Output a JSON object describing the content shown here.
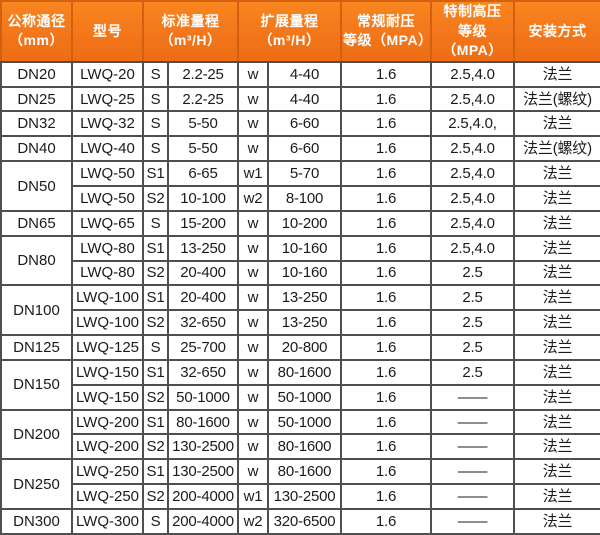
{
  "colors": {
    "header_orange": "#f3761b",
    "header_orange_light": "#f8861f",
    "header_cell_border": "#d2600e",
    "grid_line": "#4f4f51",
    "header_text": "#ffffff",
    "body_text": "#1b1b1b",
    "row_background": "#ffffff"
  },
  "table": {
    "headers": [
      {
        "id": "nominal-diameter",
        "label": "公称通径\n（mm）"
      },
      {
        "id": "model",
        "label": "型号"
      },
      {
        "id": "standard-range",
        "label": "标准量程\n（m³/H）"
      },
      {
        "id": "extended-range",
        "label": "扩展量程\n（m³/H）"
      },
      {
        "id": "standard-pressure",
        "label": "常规耐压\n等级（MPA）"
      },
      {
        "id": "high-pressure",
        "label": "特制高压\n等级（MPA）"
      },
      {
        "id": "installation",
        "label": "安装方式"
      }
    ],
    "rows": [
      {
        "dn": "DN20",
        "dn_rowspan": 1,
        "model": "LWQ-20",
        "std_code": "S",
        "std_range": "2.2-25",
        "ext_code": "w",
        "ext_range": "4-40",
        "pressure": "1.6",
        "high_pressure": "2.5,4.0",
        "installation": "法兰"
      },
      {
        "dn": "DN25",
        "dn_rowspan": 1,
        "model": "LWQ-25",
        "std_code": "S",
        "std_range": "2.2-25",
        "ext_code": "w",
        "ext_range": "4-40",
        "pressure": "1.6",
        "high_pressure": "2.5,4.0",
        "installation": "法兰(螺纹)"
      },
      {
        "dn": "DN32",
        "dn_rowspan": 1,
        "model": "LWQ-32",
        "std_code": "S",
        "std_range": "5-50",
        "ext_code": "w",
        "ext_range": "6-60",
        "pressure": "1.6",
        "high_pressure": "2.5,4.0,",
        "installation": "法兰"
      },
      {
        "dn": "DN40",
        "dn_rowspan": 1,
        "model": "LWQ-40",
        "std_code": "S",
        "std_range": "5-50",
        "ext_code": "w",
        "ext_range": "6-60",
        "pressure": "1.6",
        "high_pressure": "2.5,4.0",
        "installation": "法兰(螺纹)"
      },
      {
        "dn": "DN50",
        "dn_rowspan": 2,
        "model": "LWQ-50",
        "std_code": "S1",
        "std_range": "6-65",
        "ext_code": "w1",
        "ext_range": "5-70",
        "pressure": "1.6",
        "high_pressure": "2.5,4.0",
        "installation": "法兰"
      },
      {
        "dn": null,
        "model": "LWQ-50",
        "std_code": "S2",
        "std_range": "10-100",
        "ext_code": "w2",
        "ext_range": "8-100",
        "pressure": "1.6",
        "high_pressure": "2.5,4.0",
        "installation": "法兰"
      },
      {
        "dn": "DN65",
        "dn_rowspan": 1,
        "model": "LWQ-65",
        "std_code": "S",
        "std_range": "15-200",
        "ext_code": "w",
        "ext_range": "10-200",
        "pressure": "1.6",
        "high_pressure": "2.5,4.0",
        "installation": "法兰"
      },
      {
        "dn": "DN80",
        "dn_rowspan": 2,
        "model": "LWQ-80",
        "std_code": "S1",
        "std_range": "13-250",
        "ext_code": "w",
        "ext_range": "10-160",
        "pressure": "1.6",
        "high_pressure": "2.5,4.0",
        "installation": "法兰"
      },
      {
        "dn": null,
        "model": "LWQ-80",
        "std_code": "S2",
        "std_range": "20-400",
        "ext_code": "w",
        "ext_range": "10-160",
        "pressure": "1.6",
        "high_pressure": "2.5",
        "installation": "法兰"
      },
      {
        "dn": "DN100",
        "dn_rowspan": 2,
        "model": "LWQ-100",
        "std_code": "S1",
        "std_range": "20-400",
        "ext_code": "w",
        "ext_range": "13-250",
        "pressure": "1.6",
        "high_pressure": "2.5",
        "installation": "法兰"
      },
      {
        "dn": null,
        "model": "LWQ-100",
        "std_code": "S2",
        "std_range": "32-650",
        "ext_code": "w",
        "ext_range": "13-250",
        "pressure": "1.6",
        "high_pressure": "2.5",
        "installation": "法兰"
      },
      {
        "dn": "DN125",
        "dn_rowspan": 1,
        "model": "LWQ-125",
        "std_code": "S",
        "std_range": "25-700",
        "ext_code": "w",
        "ext_range": "20-800",
        "pressure": "1.6",
        "high_pressure": "2.5",
        "installation": "法兰"
      },
      {
        "dn": "DN150",
        "dn_rowspan": 2,
        "model": "LWQ-150",
        "std_code": "S1",
        "std_range": "32-650",
        "ext_code": "w",
        "ext_range": "80-1600",
        "pressure": "1.6",
        "high_pressure": "2.5",
        "installation": "法兰"
      },
      {
        "dn": null,
        "model": "LWQ-150",
        "std_code": "S2",
        "std_range": "50-1000",
        "ext_code": "w",
        "ext_range": "50-1000",
        "pressure": "1.6",
        "high_pressure": "——",
        "installation": "法兰"
      },
      {
        "dn": "DN200",
        "dn_rowspan": 2,
        "model": "LWQ-200",
        "std_code": "S1",
        "std_range": "80-1600",
        "ext_code": "w",
        "ext_range": "50-1000",
        "pressure": "1.6",
        "high_pressure": "——",
        "installation": "法兰"
      },
      {
        "dn": null,
        "model": "LWQ-200",
        "std_code": "S2",
        "std_range": "130-2500",
        "ext_code": "w",
        "ext_range": "80-1600",
        "pressure": "1.6",
        "high_pressure": "——",
        "installation": "法兰"
      },
      {
        "dn": "DN250",
        "dn_rowspan": 2,
        "model": "LWQ-250",
        "std_code": "S1",
        "std_range": "130-2500",
        "ext_code": "w",
        "ext_range": "80-1600",
        "pressure": "1.6",
        "high_pressure": "——",
        "installation": "法兰"
      },
      {
        "dn": null,
        "model": "LWQ-250",
        "std_code": "S2",
        "std_range": "200-4000",
        "ext_code": "w1",
        "ext_range": "130-2500",
        "pressure": "1.6",
        "high_pressure": "——",
        "installation": "法兰"
      },
      {
        "dn": "DN300",
        "dn_rowspan": 1,
        "model": "LWQ-300",
        "std_code": "S",
        "std_range": "200-4000",
        "ext_code": "w2",
        "ext_range": "320-6500",
        "pressure": "1.6",
        "high_pressure": "——",
        "installation": "法兰"
      }
    ]
  }
}
